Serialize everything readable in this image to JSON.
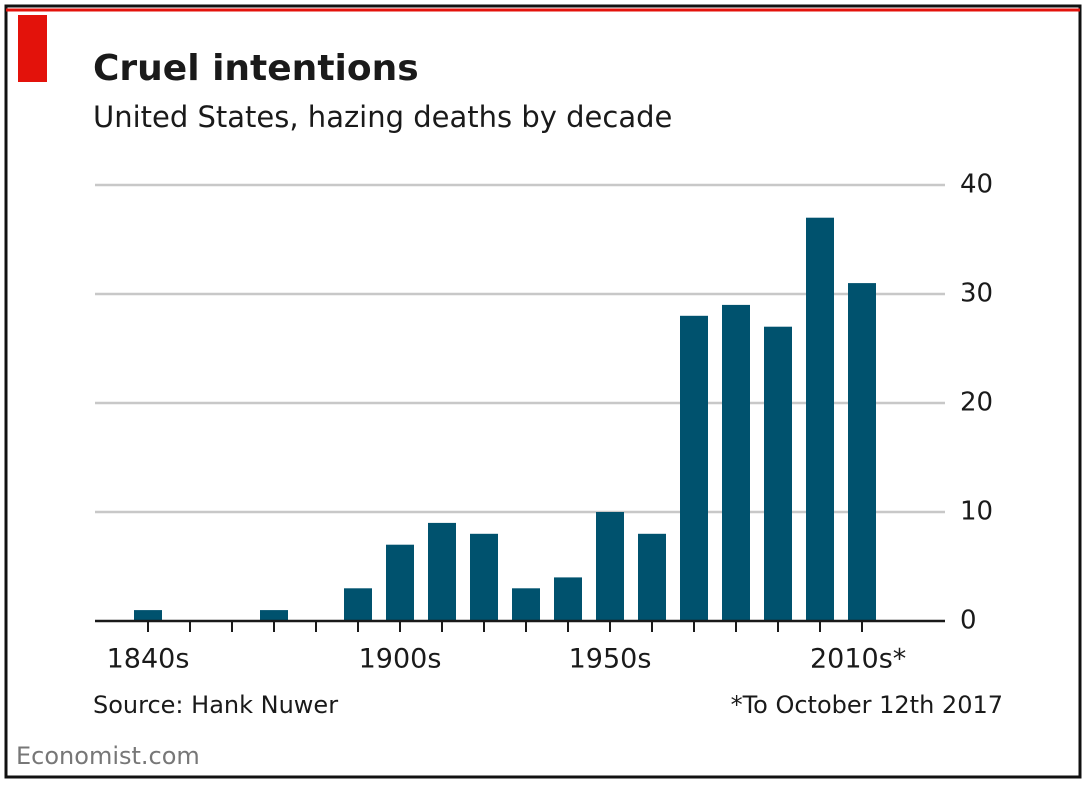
{
  "chart_data": {
    "type": "bar",
    "title": "Cruel intentions",
    "subtitle": "United States, hazing deaths by decade",
    "categories": [
      "1840s",
      null,
      null,
      null,
      null,
      null,
      "1900s",
      null,
      null,
      null,
      null,
      "1950s",
      null,
      null,
      null,
      null,
      null,
      "2010s*"
    ],
    "values": [
      1,
      0,
      0,
      1,
      0,
      3,
      7,
      9,
      8,
      3,
      4,
      10,
      8,
      28,
      29,
      27,
      37,
      31
    ],
    "color": "#00526e",
    "ylim": [
      0,
      40
    ],
    "yticks": [
      0,
      10,
      20,
      30,
      40
    ],
    "grid": true,
    "source": "Source: Hank Nuwer",
    "note": "*To October 12th 2017",
    "brand": "Economist.com"
  }
}
